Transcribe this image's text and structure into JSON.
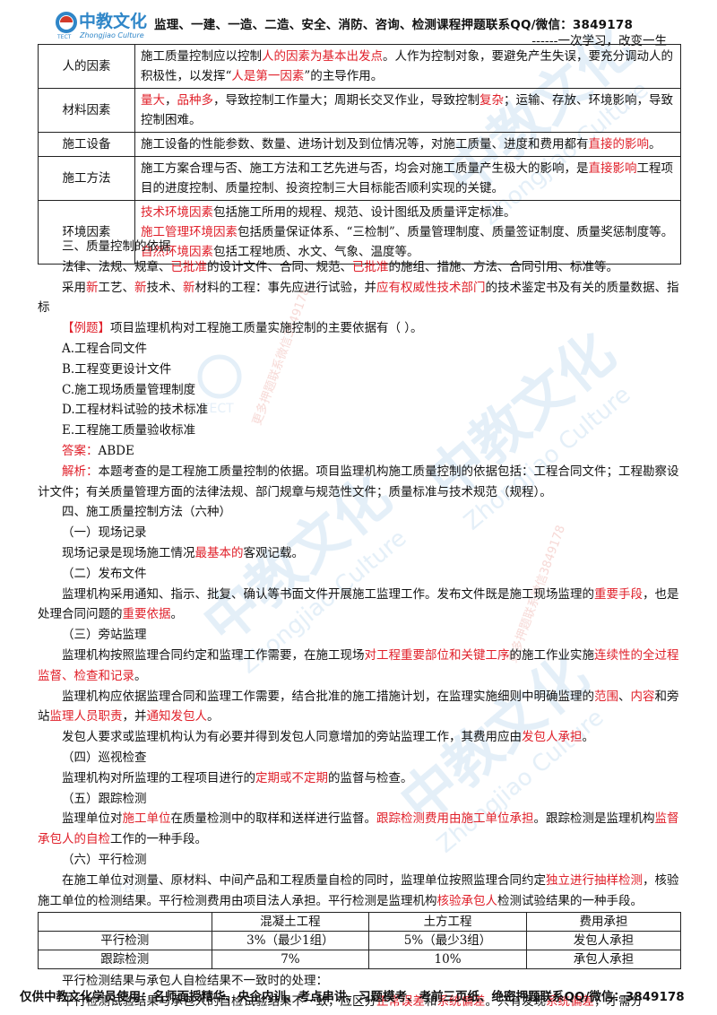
{
  "header": {
    "logo_text": "中教文化",
    "logo_sub": "Zhongjiao Culture",
    "logo_tect": "TECT",
    "contact": "监理、一建、一造、二造、安全、消防、咨询、检测课程押题联系QQ/微信：3849178",
    "motto": "------一次学习，改变一生"
  },
  "factors_table": [
    {
      "key": "人的因素",
      "parts": [
        [
          "施工质量控制应以控制",
          0
        ],
        [
          "人的因素为基本出发点",
          1
        ],
        [
          "。人作为控制对象，要避免产生失误，要充分调动人的积极性，以发挥“",
          0
        ],
        [
          "人是第一因素",
          1
        ],
        [
          "”的主导作用。",
          0
        ]
      ]
    },
    {
      "key": "材料因素",
      "parts": [
        [
          "量大",
          1
        ],
        [
          "，",
          0
        ],
        [
          "品种多",
          1
        ],
        [
          "，导致控制工作量大；周期长交叉作业，导致控制",
          0
        ],
        [
          "复杂",
          1
        ],
        [
          "；运输、存放、环境影响，导致控制困难。",
          0
        ]
      ]
    },
    {
      "key": "施工设备",
      "parts": [
        [
          "施工设备的性能参数、数量、进场计划及到位情况等，对施工质量、进度和费用都有",
          0
        ],
        [
          "直接的影响",
          1
        ],
        [
          "。",
          0
        ]
      ]
    },
    {
      "key": "施工方法",
      "parts": [
        [
          "施工方案合理与否、施工方法和工艺先进与否，均会对施工质量产生极大的影响，是",
          0
        ],
        [
          "直接影响",
          1
        ],
        [
          "工程项目的进度控制、质量控制、投资控制三大目标能否顺利实现的关键。",
          0
        ]
      ]
    },
    {
      "key": "环境因素",
      "lines": [
        [
          [
            "技术环境因素",
            1
          ],
          [
            "包括施工所用的规程、规范、设计图纸及质量评定标准。",
            0
          ]
        ],
        [
          [
            "施工管理环境因素",
            1
          ],
          [
            "包括质量保证体系、“三检制”、质量管理制度、质量签证制度、质量奖惩制度等。",
            0
          ]
        ],
        [
          [
            "自然环境因素",
            1
          ],
          [
            "包括工程地质、水文、气象、温度等。",
            0
          ]
        ]
      ]
    }
  ],
  "section3": {
    "heading": "三、质量控制的依据",
    "p1": [
      [
        "法律、法规、规章、",
        0
      ],
      [
        "已批准",
        1
      ],
      [
        "的设计文件、合同、规范、",
        0
      ],
      [
        "已批准",
        1
      ],
      [
        "的施组、措施、方法、合同引用、标准等。",
        0
      ]
    ],
    "p2": [
      [
        "采用",
        0
      ],
      [
        "新",
        1
      ],
      [
        "工艺、",
        0
      ],
      [
        "新",
        1
      ],
      [
        "技术、",
        0
      ],
      [
        "新",
        1
      ],
      [
        "材料的工程：事先应进行试验，并",
        0
      ],
      [
        "应有权威性技术部门",
        1
      ],
      [
        "的技术鉴定书及有关的质量数据、指标",
        0
      ]
    ]
  },
  "example": {
    "tag": "【例题】",
    "question": "项目监理机构对工程施工质量实施控制的主要依据有（    ）。",
    "options": [
      "A.工程合同文件",
      "B.工程变更设计文件",
      "C.施工现场质量管理制度",
      "D.工程材料试验的技术标准",
      "E.工程施工质量验收标准"
    ],
    "answer_label": "答案：",
    "answer": "ABDE",
    "analysis_label": "解析：",
    "analysis": "本题考查的是工程施工质量控制的依据。项目监理机构施工质量控制的依据包括：工程合同文件；工程勘察设计文件；有关质量管理方面的法律法规、部门规章与规范性文件；质量标准与技术规范（规程）。"
  },
  "section4": {
    "heading": "四、施工质量控制方法（六种）",
    "s1_title": "（一）现场记录",
    "s1_p": [
      [
        "现场记录是现场施工情况",
        0
      ],
      [
        "最基本的",
        1
      ],
      [
        "客观记载。",
        0
      ]
    ],
    "s2_title": "（二）发布文件",
    "s2_p": [
      [
        "监理机构采用通知、指示、批复、确认等书面文件开展施工监理工作。发布文件既是施工现场监理的",
        0
      ],
      [
        "重要手段",
        1
      ],
      [
        "，也是处理合同问题的",
        0
      ],
      [
        "重要依据",
        1
      ],
      [
        "。",
        0
      ]
    ],
    "s3_title": "（三）旁站监理",
    "s3_p1": [
      [
        "监理机构按照监理合同约定和监理工作需要，在施工现场",
        0
      ],
      [
        "对工程重要部位和关键工序",
        1
      ],
      [
        "的施工作业实施",
        0
      ],
      [
        "连续性的全过程监督、检查和记录",
        1
      ],
      [
        "。",
        0
      ]
    ],
    "s3_p2": [
      [
        "监理机构应依据监理合同和监理工作需要，结合批准的施工措施计划，在监理实施细则中明确监理的",
        0
      ],
      [
        "范围",
        1
      ],
      [
        "、",
        0
      ],
      [
        "内容",
        1
      ],
      [
        "和旁站",
        0
      ],
      [
        "监理人员职责",
        1
      ],
      [
        "，并",
        0
      ],
      [
        "通知发包人",
        1
      ],
      [
        "。",
        0
      ]
    ],
    "s3_p3": [
      [
        "发包人要求或监理机构认为有必要并得到发包人同意增加的旁站监理工作，其费用应由",
        0
      ],
      [
        "发包人承担",
        1
      ],
      [
        "。",
        0
      ]
    ],
    "s4_title": "（四）巡视检查",
    "s4_p": [
      [
        "监理机构对所监理的工程项目进行的",
        0
      ],
      [
        "定期或不定期",
        1
      ],
      [
        "的监督与检查。",
        0
      ]
    ],
    "s5_title": "（五）跟踪检测",
    "s5_p": [
      [
        "监理单位对",
        0
      ],
      [
        "施工单位",
        1
      ],
      [
        "在质量检测中的取样和送样进行监督。",
        0
      ],
      [
        "跟踪检测费用由施工单位承担",
        1
      ],
      [
        "。跟踪检测是监理机构",
        0
      ],
      [
        "监督承包人的自检",
        1
      ],
      [
        "工作的一种手段。",
        0
      ]
    ],
    "s6_title": "（六）平行检测",
    "s6_p": [
      [
        "在施工单位对测量、原材料、中间产品和工程质量自检的同时，监理单位按照监理合同约定",
        0
      ],
      [
        "独立进行抽样检测",
        1
      ],
      [
        "，核验施工单位的检测结果。平行检测费用由项目法人承担。平行检测是监理机构",
        0
      ],
      [
        "核验承包人",
        1
      ],
      [
        "检测试验结果的一种手段。",
        0
      ]
    ]
  },
  "compare_table": {
    "header": [
      "",
      "混凝土工程",
      "土方工程",
      "费用承担"
    ],
    "rows": [
      [
        "平行检测",
        "3%（最少1组）",
        "5%（最少3组）",
        "发包人承担"
      ],
      [
        "跟踪检测",
        "7%",
        "10%",
        "承包人承担"
      ]
    ]
  },
  "tail": {
    "p1": "平行检测结果与承包人自检结果不一致时的处理：",
    "p2": [
      [
        "平行检测试验结果与承包人的自检试验结果不一致，应区分",
        0
      ],
      [
        "正常误差",
        1
      ],
      [
        "和",
        0
      ],
      [
        "系统偏差",
        1
      ],
      [
        "。只有发现",
        0
      ],
      [
        "系统偏差",
        1
      ],
      [
        "，才需分",
        0
      ]
    ]
  },
  "footer": "仅供中教文化学员使用：名师面授精华、央企内训、考点串讲、习题模考、考前三页纸、绝密押题联系QQ/微信：3849178",
  "watermark": {
    "logo_text": "中教文化",
    "culture": "Zhongjiao Culture",
    "tect": "TECT",
    "contact": "更多押题联系微信3849178"
  },
  "colors": {
    "highlight": "#e0202a",
    "logo_blue": "#2f86c8",
    "logo_red": "#d23a2a"
  }
}
